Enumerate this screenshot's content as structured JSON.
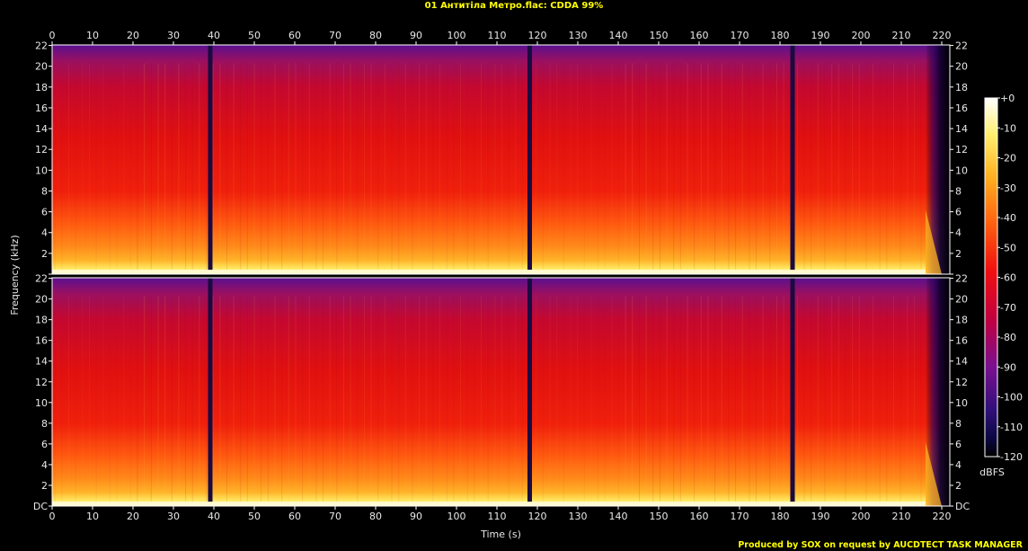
{
  "title": "01 Антитіла Метро.flac: CDDA 99%",
  "footer": "Produced by SOX on request by AUCDTECT TASK MANAGER",
  "colors": {
    "background": "#000000",
    "title": "#ffff00",
    "axis_text": "#e8e8e8"
  },
  "chart_data": {
    "type": "heatmap",
    "title": "01 Антитіла Метро.flac: CDDA 99%",
    "xlabel": "Time (s)",
    "ylabel": "Frequency (kHz)",
    "xlim": [
      0,
      222
    ],
    "ylim": [
      0,
      22.05
    ],
    "x_ticks": [
      "0",
      "10",
      "20",
      "30",
      "40",
      "50",
      "60",
      "70",
      "80",
      "90",
      "100",
      "110",
      "120",
      "130",
      "140",
      "150",
      "160",
      "170",
      "180",
      "190",
      "200",
      "210",
      "220"
    ],
    "y_ticks": [
      "DC",
      "2",
      "4",
      "6",
      "8",
      "10",
      "12",
      "14",
      "16",
      "18",
      "20",
      "22"
    ],
    "channels": [
      "Channel 1",
      "Channel 2"
    ],
    "colorbar": {
      "label": "dBFS",
      "ticks": [
        "+0",
        "-10",
        "-20",
        "-30",
        "-40",
        "-50",
        "-60",
        "-70",
        "-80",
        "-90",
        "-100",
        "-110",
        "-120"
      ],
      "range": [
        -120,
        0
      ]
    },
    "quiet_gaps_s": [
      39,
      118,
      183
    ],
    "fade_out_start_s": 216,
    "track_end_s": 223
  }
}
